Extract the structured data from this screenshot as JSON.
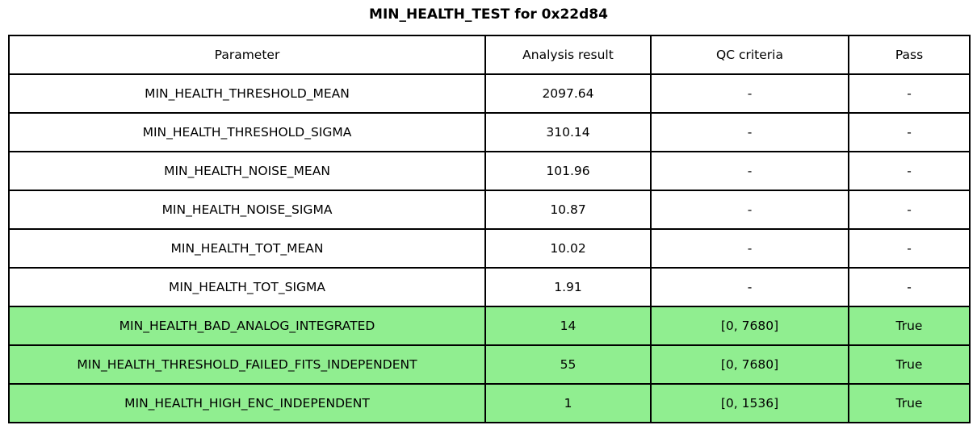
{
  "title": "MIN_HEALTH_TEST for 0x22d84",
  "colors": {
    "pass_green": "#90ee90",
    "border": "#000000",
    "text": "#000000",
    "background": "#ffffff"
  },
  "table": {
    "headers": [
      "Parameter",
      "Analysis result",
      "QC criteria",
      "Pass"
    ],
    "rows": [
      {
        "parameter": "MIN_HEALTH_THRESHOLD_MEAN",
        "result": "2097.64",
        "qc": "-",
        "pass": "-",
        "highlight": false
      },
      {
        "parameter": "MIN_HEALTH_THRESHOLD_SIGMA",
        "result": "310.14",
        "qc": "-",
        "pass": "-",
        "highlight": false
      },
      {
        "parameter": "MIN_HEALTH_NOISE_MEAN",
        "result": "101.96",
        "qc": "-",
        "pass": "-",
        "highlight": false
      },
      {
        "parameter": "MIN_HEALTH_NOISE_SIGMA",
        "result": "10.87",
        "qc": "-",
        "pass": "-",
        "highlight": false
      },
      {
        "parameter": "MIN_HEALTH_TOT_MEAN",
        "result": "10.02",
        "qc": "-",
        "pass": "-",
        "highlight": false
      },
      {
        "parameter": "MIN_HEALTH_TOT_SIGMA",
        "result": "1.91",
        "qc": "-",
        "pass": "-",
        "highlight": false
      },
      {
        "parameter": "MIN_HEALTH_BAD_ANALOG_INTEGRATED",
        "result": "14",
        "qc": "[0, 7680]",
        "pass": "True",
        "highlight": true
      },
      {
        "parameter": "MIN_HEALTH_THRESHOLD_FAILED_FITS_INDEPENDENT",
        "result": "55",
        "qc": "[0, 7680]",
        "pass": "True",
        "highlight": true
      },
      {
        "parameter": "MIN_HEALTH_HIGH_ENC_INDEPENDENT",
        "result": "1",
        "qc": "[0, 1536]",
        "pass": "True",
        "highlight": true
      }
    ]
  },
  "chart_data": {
    "type": "table",
    "title": "MIN_HEALTH_TEST for 0x22d84",
    "columns": [
      "Parameter",
      "Analysis result",
      "QC criteria",
      "Pass"
    ],
    "rows": [
      [
        "MIN_HEALTH_THRESHOLD_MEAN",
        "2097.64",
        "-",
        "-"
      ],
      [
        "MIN_HEALTH_THRESHOLD_SIGMA",
        "310.14",
        "-",
        "-"
      ],
      [
        "MIN_HEALTH_NOISE_MEAN",
        "101.96",
        "-",
        "-"
      ],
      [
        "MIN_HEALTH_NOISE_SIGMA",
        "10.87",
        "-",
        "-"
      ],
      [
        "MIN_HEALTH_TOT_MEAN",
        "10.02",
        "-",
        "-"
      ],
      [
        "MIN_HEALTH_TOT_SIGMA",
        "1.91",
        "-",
        "-"
      ],
      [
        "MIN_HEALTH_BAD_ANALOG_INTEGRATED",
        "14",
        "[0, 7680]",
        "True"
      ],
      [
        "MIN_HEALTH_THRESHOLD_FAILED_FITS_INDEPENDENT",
        "55",
        "[0, 7680]",
        "True"
      ],
      [
        "MIN_HEALTH_HIGH_ENC_INDEPENDENT",
        "1",
        "[0, 1536]",
        "True"
      ]
    ],
    "highlighted_rows": [
      6,
      7,
      8
    ],
    "highlight_meaning": "QC criteria passed (True)"
  }
}
